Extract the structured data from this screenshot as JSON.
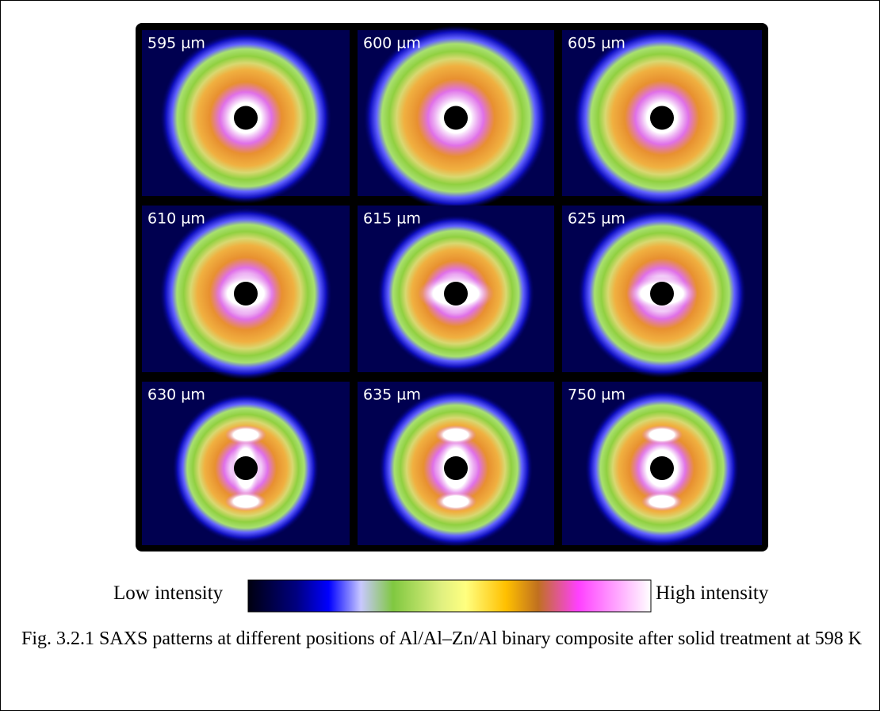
{
  "panels": [
    {
      "label": "595 µm"
    },
    {
      "label": "600 µm"
    },
    {
      "label": "605 µm"
    },
    {
      "label": "610 µm"
    },
    {
      "label": "615 µm"
    },
    {
      "label": "625 µm"
    },
    {
      "label": "630 µm"
    },
    {
      "label": "635 µm"
    },
    {
      "label": "750 µm"
    }
  ],
  "colorbar": {
    "low_label": "Low intensity",
    "high_label": "High intensity"
  },
  "caption": "Fig. 3.2.1 SAXS patterns at different positions of Al/Al–Zn/Al binary composite after solid treatment at 598 K"
}
